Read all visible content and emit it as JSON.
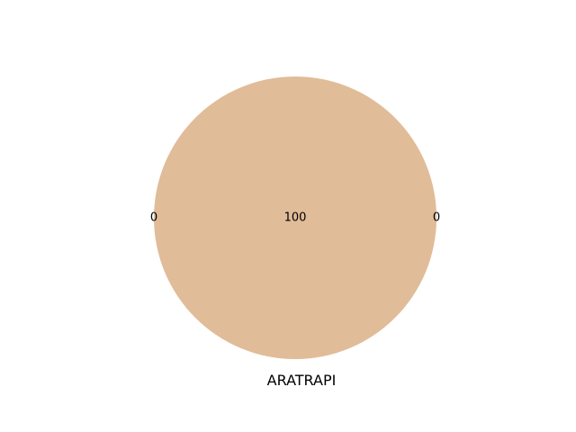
{
  "chart_data": {
    "type": "pie",
    "title": "",
    "xlabel": "ARATRAPI",
    "ylabel": "",
    "slices": [
      {
        "label": "",
        "value": 0,
        "display": "0",
        "color": "#C49A6C"
      },
      {
        "label": "",
        "value": 100,
        "display": "100",
        "color": "#E0BC98"
      },
      {
        "label": "",
        "value": 0,
        "display": "0",
        "color": "#B89070"
      }
    ]
  }
}
